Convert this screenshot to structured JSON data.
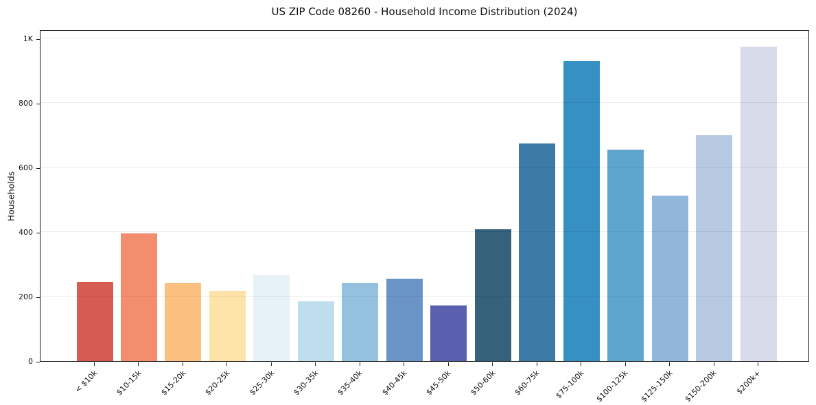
{
  "figure": {
    "background": "#ffffff"
  },
  "chart_data": {
    "type": "bar",
    "title": "US ZIP Code 08260 - Household Income Distribution (2024)",
    "xlabel": "",
    "ylabel": "Households",
    "categories": [
      "< $10k",
      "$10-15k",
      "$15-20k",
      "$20-25k",
      "$25-30k",
      "$30-35k",
      "$35-40k",
      "$40-45k",
      "$45-50k",
      "$50-60k",
      "$60-75k",
      "$75-100k",
      "$100-125k",
      "$125-150k",
      "$150-200k",
      "$200k+"
    ],
    "values": [
      245,
      395,
      242,
      218,
      266,
      185,
      243,
      256,
      172,
      408,
      675,
      930,
      655,
      512,
      700,
      975
    ],
    "bar_colors": [
      "#d65c52",
      "#f28e6d",
      "#fac07f",
      "#fde3a7",
      "#e7f1f8",
      "#bedded",
      "#93c1de",
      "#6b94c6",
      "#5a5fae",
      "#35617b",
      "#3b7ba5",
      "#3690c4",
      "#5ea6ce",
      "#92b6d9",
      "#b6c9e1",
      "#d8dbe9"
    ],
    "ylim": [
      0,
      1028
    ],
    "ytick_values": [
      0,
      200,
      400,
      600,
      800,
      1000
    ],
    "ytick_labels": [
      "0",
      "200",
      "400",
      "600",
      "800",
      "1K"
    ],
    "grid": "horizontal",
    "grid_color": "#ebebeb",
    "axis_color": "#1a1a1a",
    "legend": "none",
    "x_tick_label_rotation_deg": 45
  }
}
